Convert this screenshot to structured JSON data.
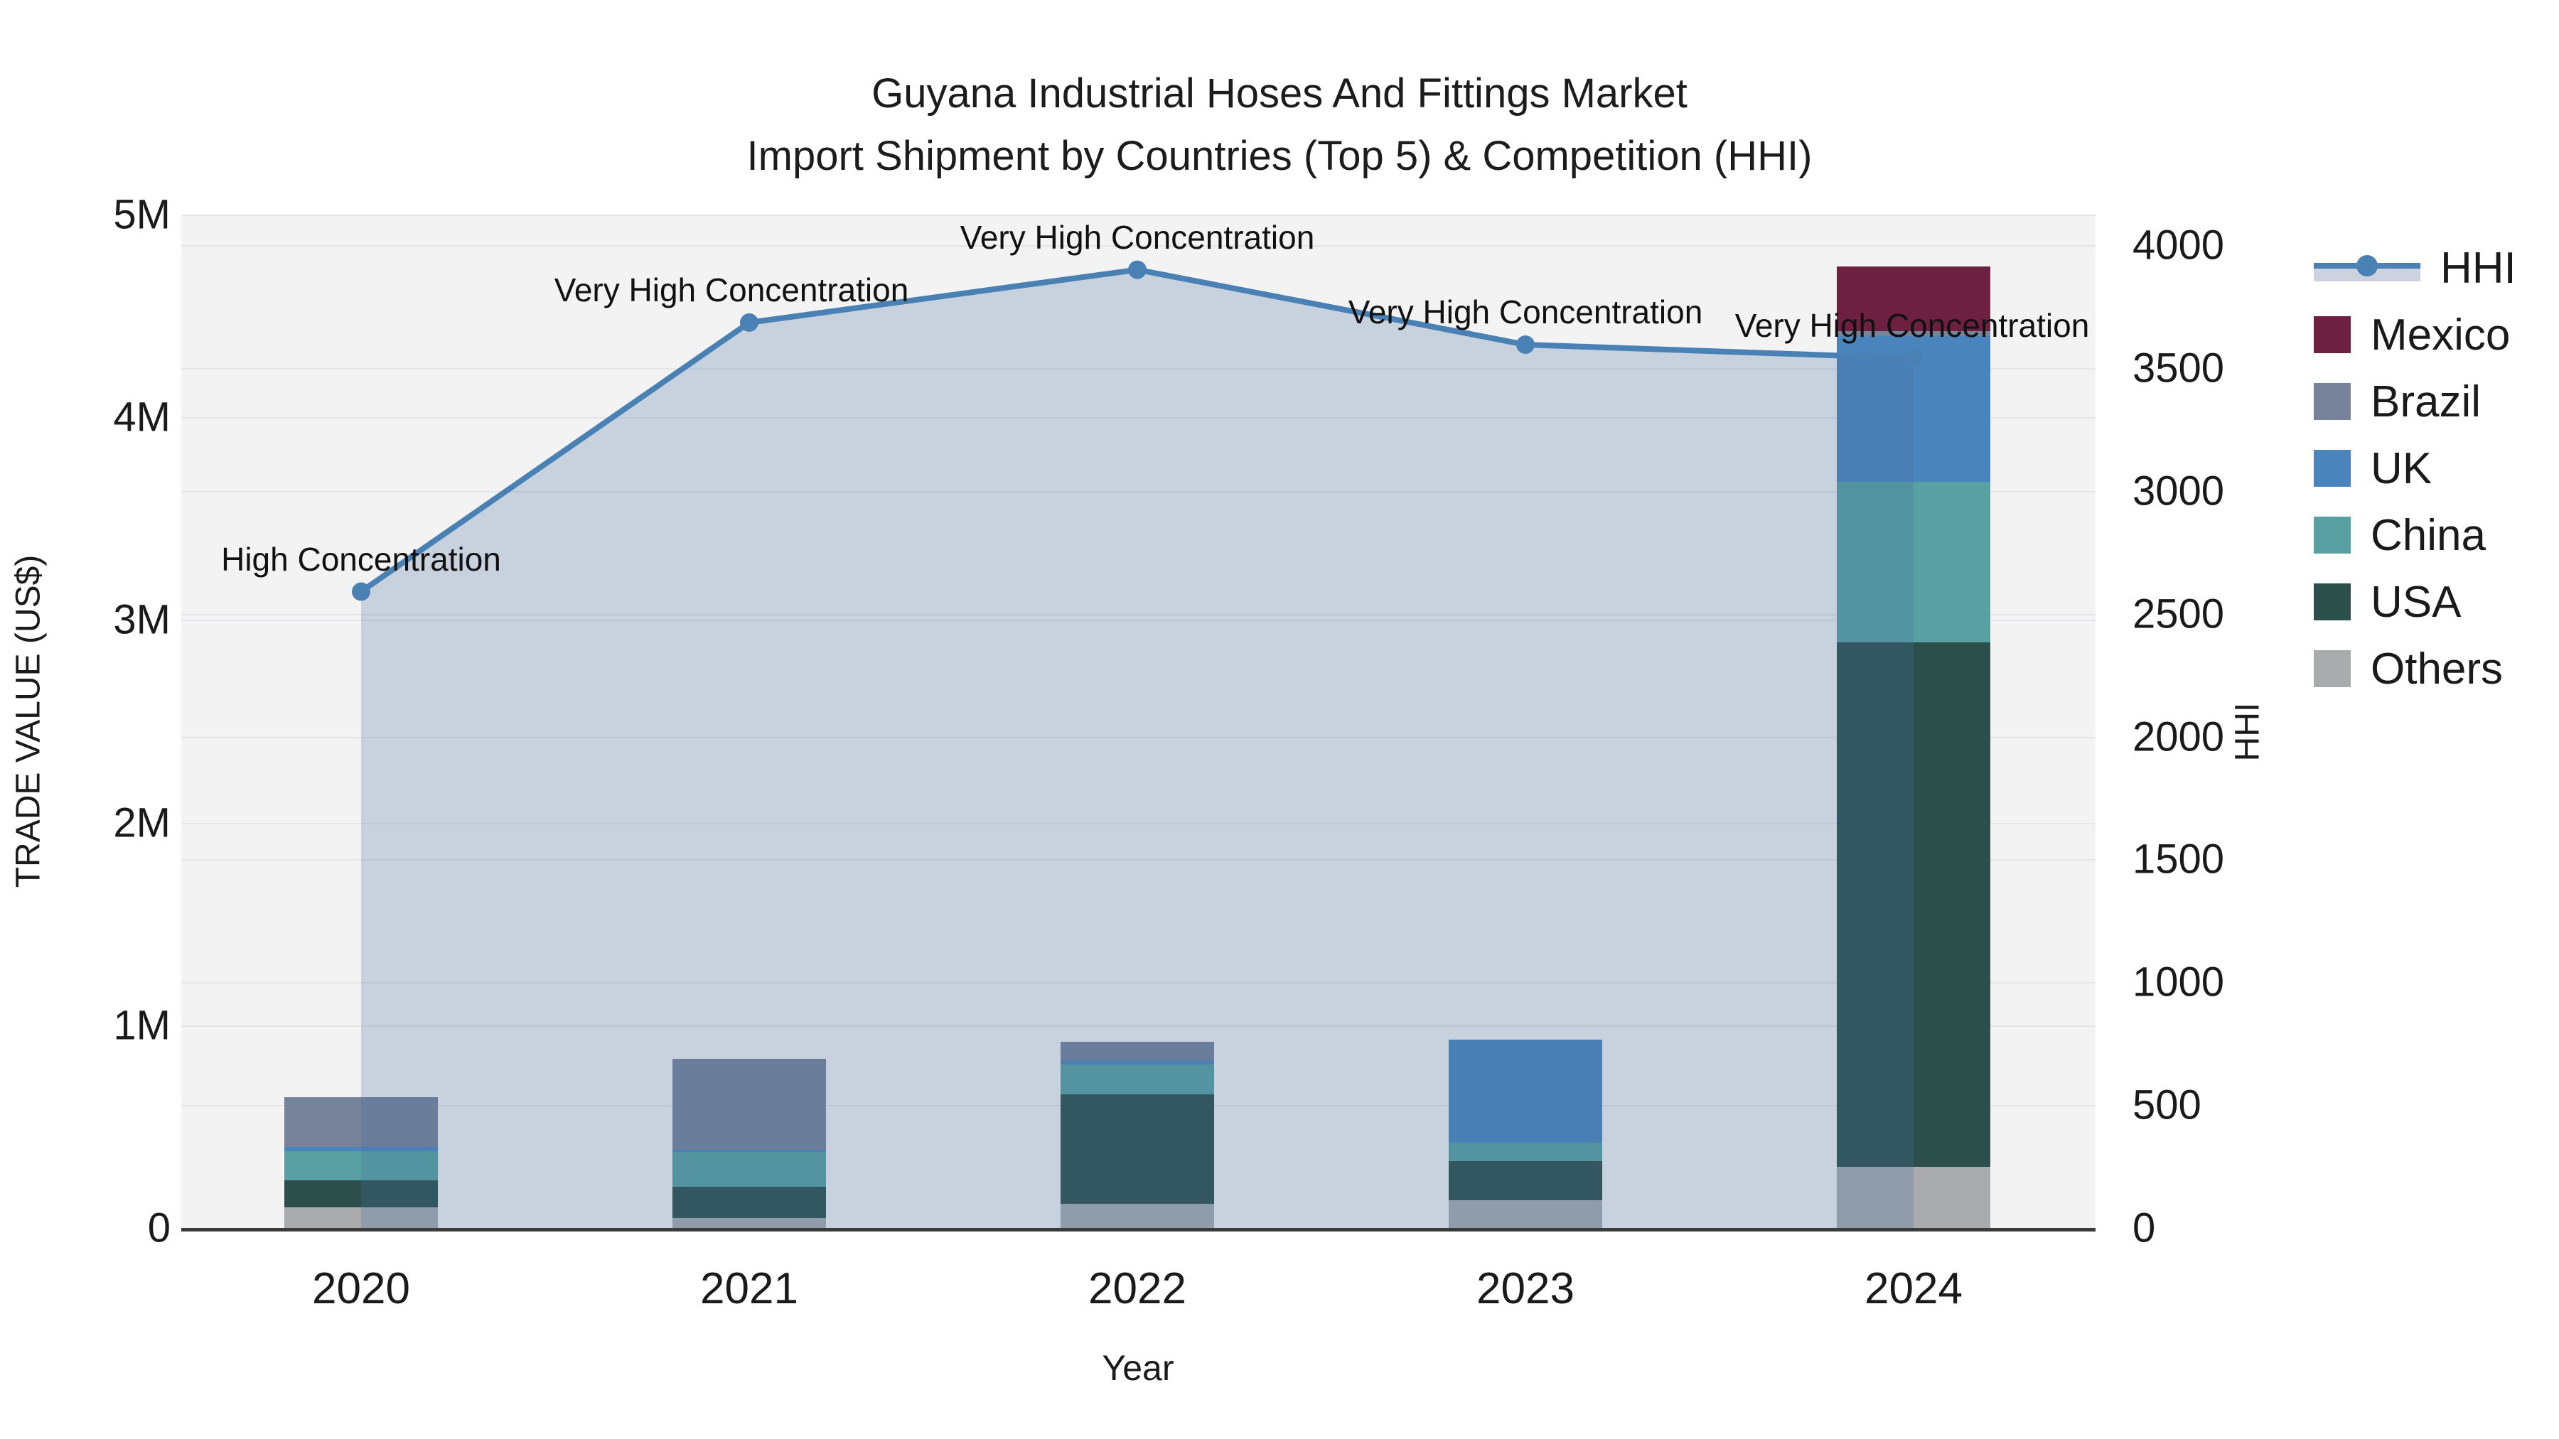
{
  "title": {
    "line1": "Guyana Industrial Hoses And Fittings Market",
    "line2": "Import Shipment by Countries (Top 5) & Competition (HHI)"
  },
  "axes": {
    "y_left": {
      "label": "TRADE VALUE (US$)",
      "ticks": [
        "0",
        "1M",
        "2M",
        "3M",
        "4M",
        "5M"
      ],
      "range_usd": [
        0,
        5000000
      ]
    },
    "y_right": {
      "label": "HHI",
      "ticks": [
        "0",
        "500",
        "1000",
        "1500",
        "2000",
        "2500",
        "3000",
        "3500",
        "4000"
      ],
      "range": [
        0,
        4000
      ]
    },
    "x": {
      "label": "Year",
      "ticks": [
        "2020",
        "2021",
        "2022",
        "2023",
        "2024"
      ]
    }
  },
  "legend": {
    "items": [
      {
        "id": "hhi",
        "label": "HHI",
        "type": "line",
        "color": "#4A81B5"
      },
      {
        "id": "mexico",
        "label": "Mexico",
        "type": "square",
        "color": "#6E2041"
      },
      {
        "id": "brazil",
        "label": "Brazil",
        "type": "square",
        "color": "#76839A"
      },
      {
        "id": "uk",
        "label": "UK",
        "type": "square",
        "color": "#4A84BD"
      },
      {
        "id": "china",
        "label": "China",
        "type": "square",
        "color": "#58A0A1"
      },
      {
        "id": "usa",
        "label": "USA",
        "type": "square",
        "color": "#2D4F4B"
      },
      {
        "id": "others",
        "label": "Others",
        "type": "square",
        "color": "#A9ABAD"
      }
    ]
  },
  "chart_data": {
    "type": "combo-stacked-bar-and-line-area",
    "categories": [
      "2020",
      "2021",
      "2022",
      "2023",
      "2024"
    ],
    "bar_value_unit": "USD millions",
    "stack_order_bottom_to_top": [
      "Others",
      "USA",
      "China",
      "UK",
      "Brazil",
      "Mexico"
    ],
    "series": [
      {
        "name": "Others",
        "color": "#A9ABAD",
        "values": [
          0.1,
          0.05,
          0.12,
          0.135,
          0.3
        ]
      },
      {
        "name": "USA",
        "color": "#2D4F4B",
        "values": [
          0.135,
          0.155,
          0.54,
          0.195,
          2.59
        ]
      },
      {
        "name": "China",
        "color": "#58A0A1",
        "values": [
          0.145,
          0.17,
          0.145,
          0.09,
          0.79
        ]
      },
      {
        "name": "UK",
        "color": "#4A84BD",
        "values": [
          0.02,
          0.01,
          0.02,
          0.51,
          0.72
        ]
      },
      {
        "name": "Brazil",
        "color": "#76839A",
        "values": [
          0.245,
          0.45,
          0.095,
          0.0,
          0.025
        ]
      },
      {
        "name": "Mexico",
        "color": "#6E2041",
        "values": [
          0.0,
          0.0,
          0.0,
          0.0,
          0.32
        ]
      }
    ],
    "bar_totals": [
      0.645,
      0.835,
      0.92,
      0.93,
      4.745
    ],
    "hhi_line": {
      "name": "HHI",
      "color": "#4A81B5",
      "fill_color": "rgba(70,110,160,0.25)",
      "values": [
        2590,
        3685,
        3900,
        3595,
        3540
      ]
    },
    "annotations": [
      {
        "category": "2020",
        "text": "High Concentration"
      },
      {
        "category": "2021",
        "text": "Very High Concentration"
      },
      {
        "category": "2022",
        "text": "Very High Concentration"
      },
      {
        "category": "2023",
        "text": "Very High Concentration"
      },
      {
        "category": "2024",
        "text": "Very High Concentration"
      }
    ],
    "ylim_left_usd": [
      0,
      5000000
    ],
    "ylim_right_hhi": [
      0,
      4000
    ],
    "grid": "on",
    "legend_position": "right"
  },
  "colors": {
    "plot_background": "#F3F3F4",
    "gridline": "#E3E5E8",
    "axis_line": "#3B3B3B",
    "hhi_line": "#4A81B5",
    "hhi_fill": "rgba(70,110,160,0.25)"
  }
}
